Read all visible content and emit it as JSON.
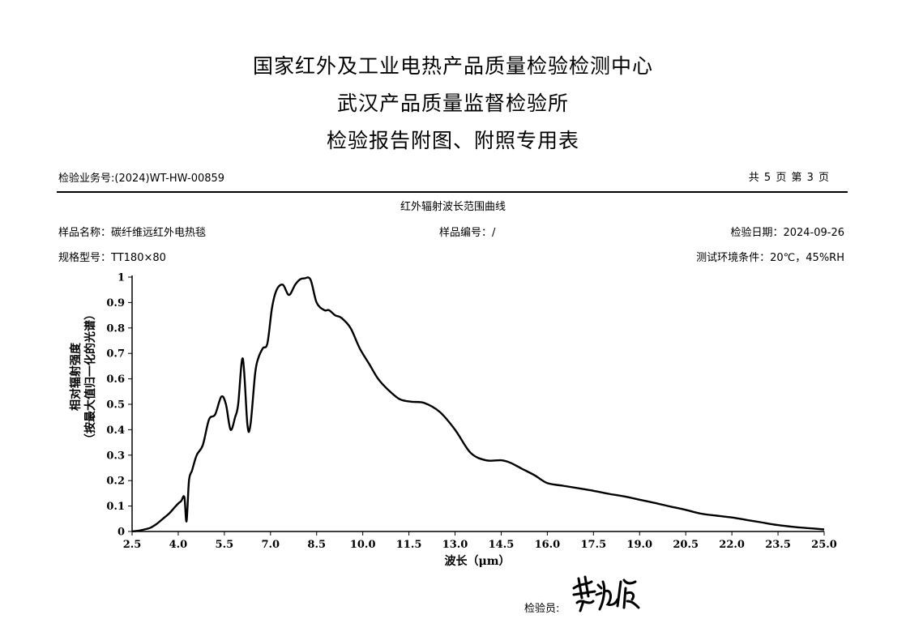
{
  "header": {
    "title_line1": "国家红外及工业电热产品质量检验检测中心",
    "title_line2": "武汉产品质量监督检验所",
    "title_line3": "检验报告附图、附照专用表"
  },
  "report": {
    "business_no": "检验业务号:(2024)WT-HW-00859",
    "page_info": "共 5 页 第 3 页"
  },
  "sample": {
    "name": "样品名称：碳纤维远红外电热毯",
    "number": "样品编号：/",
    "date": "检验日期：2024-09-26",
    "model": "规格型号：TT180×80",
    "conditions": "测试环境条件：20℃，45%RH"
  },
  "footer": {
    "inspector_label": "检验员:"
  },
  "chart_data": {
    "type": "line",
    "title": "红外辐射波长范围曲线",
    "xlabel": "波长（μm）",
    "ylabel_line1": "相对辐射强度",
    "ylabel_line2": "（按最大值归一化的光谱）",
    "xlim": [
      2.5,
      25.0
    ],
    "ylim": [
      0,
      1
    ],
    "x_ticks": [
      "2.5",
      "4.0",
      "5.5",
      "7.0",
      "8.5",
      "10.0",
      "11.5",
      "13.0",
      "14.5",
      "16.0",
      "17.5",
      "19.0",
      "20.5",
      "22.0",
      "23.5",
      "25.0"
    ],
    "y_ticks": [
      "0",
      "0.1",
      "0.2",
      "0.3",
      "0.4",
      "0.5",
      "0.6",
      "0.7",
      "0.8",
      "0.9",
      "1"
    ],
    "grid": false,
    "line_color": "#000000",
    "series": [
      {
        "x": [
          2.5,
          2.7,
          2.9,
          3.1,
          3.3,
          3.5,
          3.7,
          3.85,
          4.0,
          4.1,
          4.2,
          4.27,
          4.35,
          4.45,
          4.6,
          4.8,
          5.0,
          5.2,
          5.4,
          5.55,
          5.7,
          5.85,
          5.95,
          6.1,
          6.25,
          6.35,
          6.5,
          6.6,
          6.75,
          6.9,
          7.05,
          7.2,
          7.4,
          7.6,
          7.8,
          7.95,
          8.1,
          8.3,
          8.5,
          8.75,
          8.9,
          9.1,
          9.3,
          9.6,
          9.9,
          10.2,
          10.5,
          10.8,
          11.2,
          11.6,
          12.0,
          12.5,
          13.0,
          13.5,
          14.0,
          14.5,
          14.8,
          15.2,
          15.6,
          16.0,
          16.5,
          17.0,
          17.5,
          18.0,
          18.5,
          19.0,
          19.5,
          20.0,
          20.5,
          21.0,
          21.5,
          22.0,
          22.5,
          23.0,
          23.5,
          24.0,
          24.5,
          25.0
        ],
        "y": [
          0.0,
          0.003,
          0.008,
          0.015,
          0.03,
          0.05,
          0.07,
          0.09,
          0.11,
          0.12,
          0.135,
          0.04,
          0.2,
          0.24,
          0.3,
          0.34,
          0.44,
          0.46,
          0.53,
          0.5,
          0.4,
          0.45,
          0.5,
          0.68,
          0.42,
          0.42,
          0.62,
          0.68,
          0.72,
          0.74,
          0.88,
          0.95,
          0.97,
          0.93,
          0.97,
          0.99,
          0.995,
          0.99,
          0.9,
          0.87,
          0.87,
          0.85,
          0.84,
          0.8,
          0.72,
          0.66,
          0.6,
          0.56,
          0.52,
          0.51,
          0.505,
          0.47,
          0.4,
          0.31,
          0.28,
          0.28,
          0.27,
          0.245,
          0.22,
          0.19,
          0.18,
          0.17,
          0.16,
          0.148,
          0.138,
          0.125,
          0.112,
          0.098,
          0.085,
          0.07,
          0.062,
          0.055,
          0.045,
          0.035,
          0.025,
          0.018,
          0.013,
          0.008
        ]
      }
    ]
  }
}
